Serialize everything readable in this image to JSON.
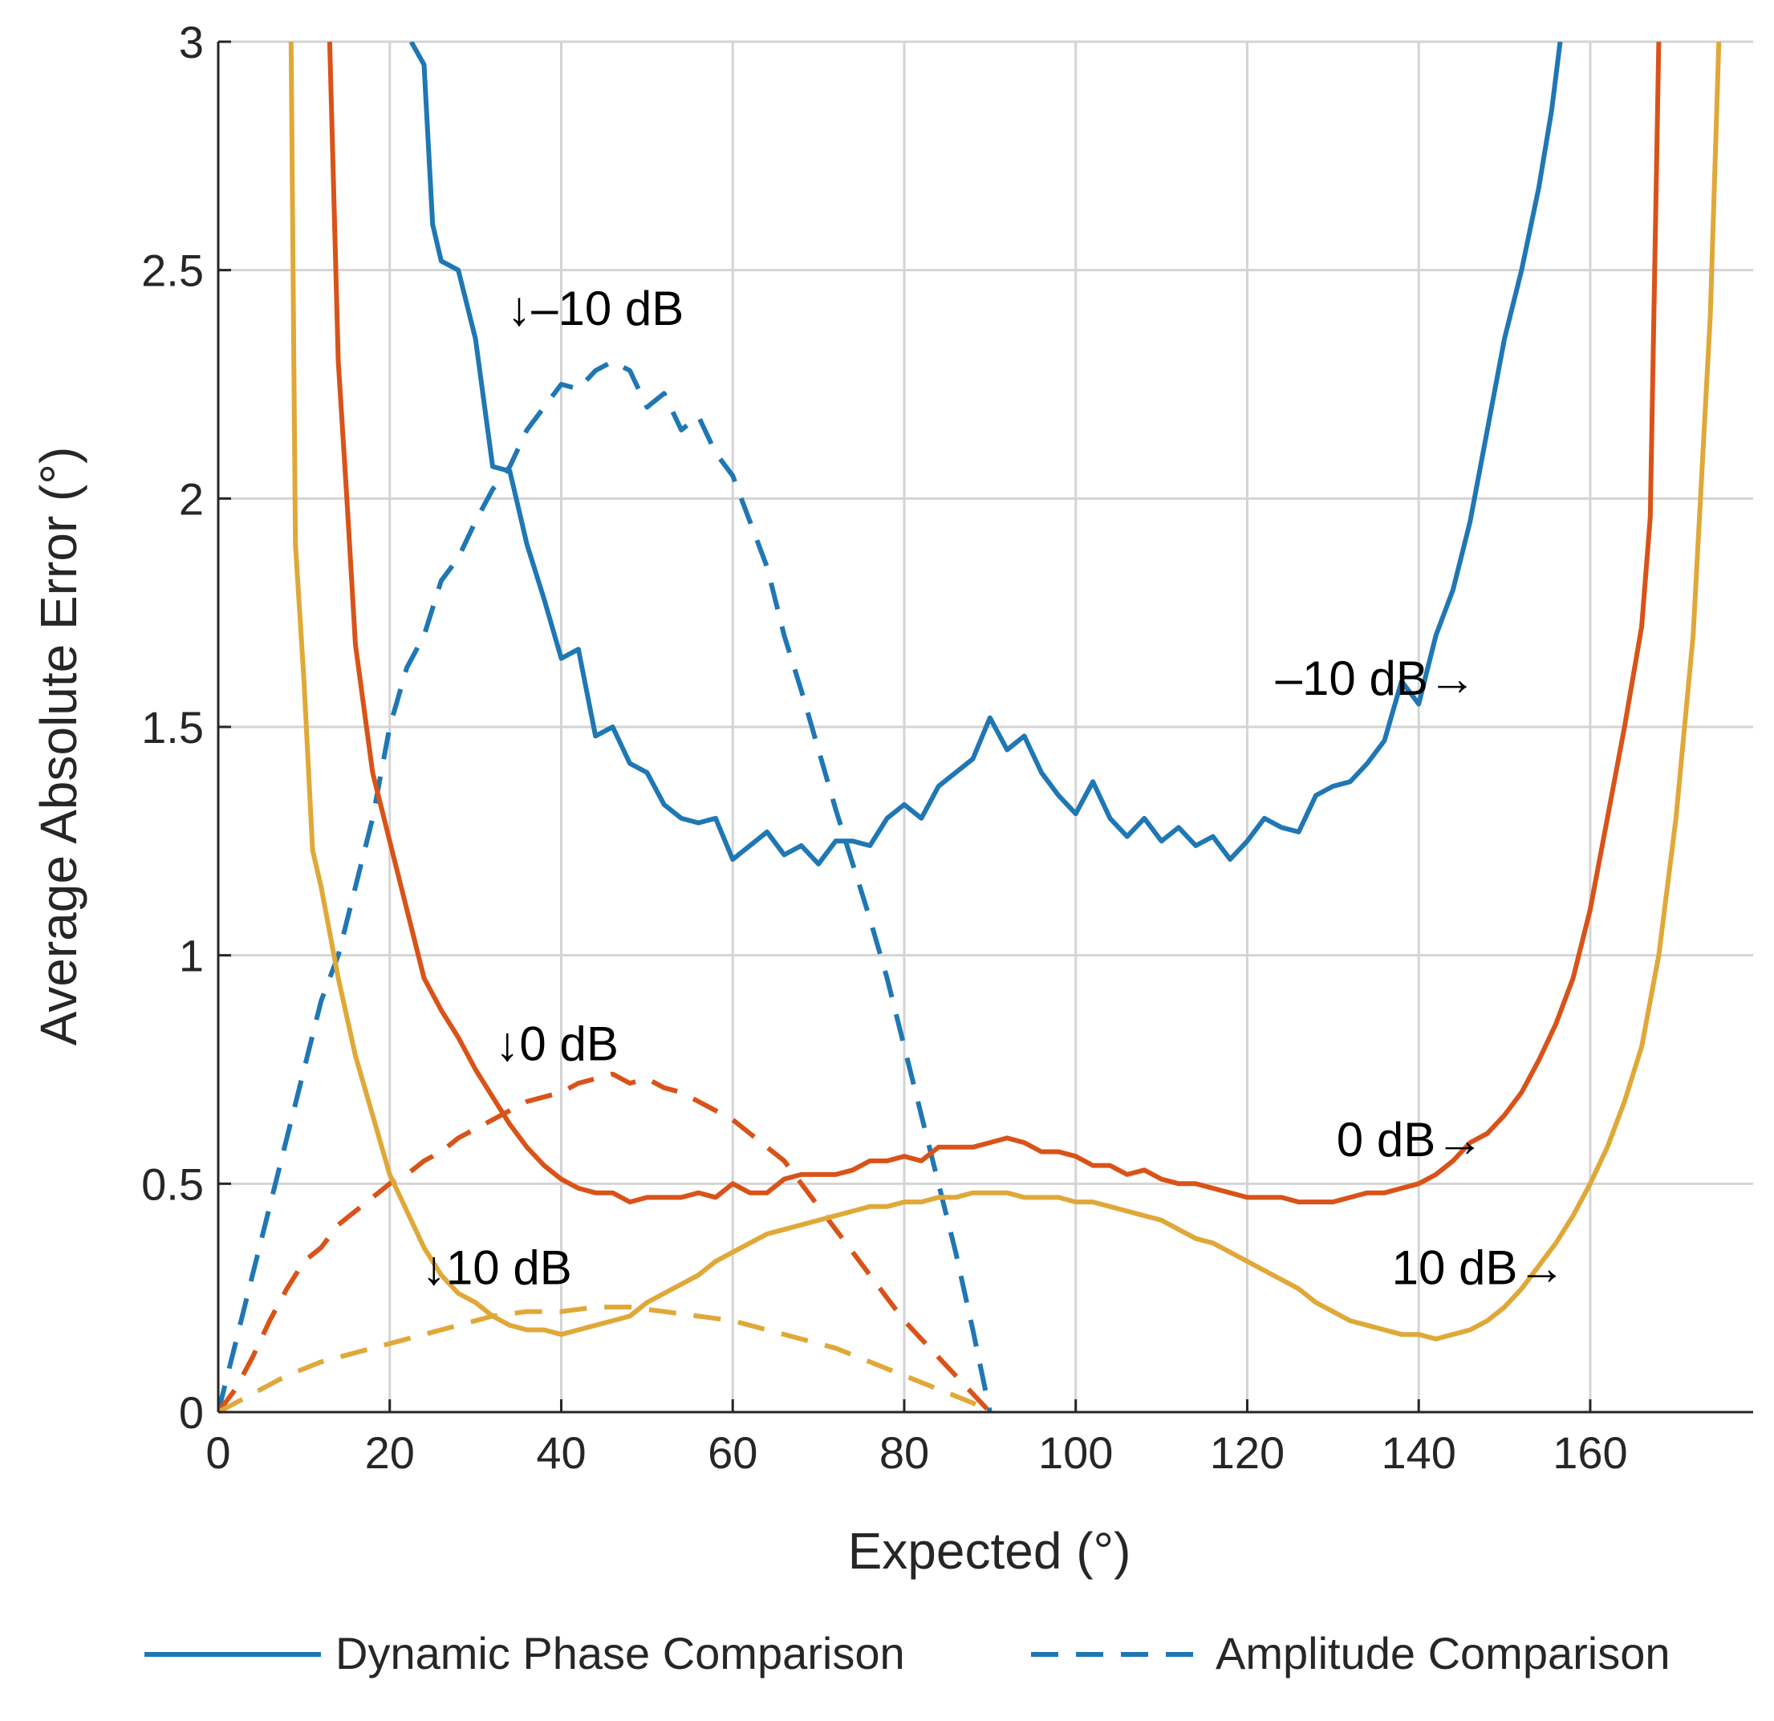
{
  "chart_data": {
    "type": "line",
    "title": "",
    "xlabel": "Expected (°)",
    "ylabel": "Average Absolute Error (°)",
    "xlim": [
      0,
      179
    ],
    "ylim": [
      0,
      3
    ],
    "x_ticks": [
      "0",
      "20",
      "40",
      "60",
      "80",
      "100",
      "120",
      "140",
      "160"
    ],
    "y_ticks": [
      "0",
      "0.5",
      "1",
      "1.5",
      "2",
      "2.5",
      "3"
    ],
    "grid": true,
    "legend": {
      "placement": "bottom",
      "entries": [
        {
          "label": "Dynamic Phase Comparison",
          "style": "solid"
        },
        {
          "label": "Amplitude Comparison",
          "style": "dashed"
        }
      ]
    },
    "colors": {
      "minus10": "#1f77b4",
      "zero": "#d95319",
      "plus10": "#e0a838"
    },
    "annotations": [
      {
        "text": "↓–10 dB",
        "x": 44,
        "y": 2.38
      },
      {
        "text": "–10 dB→",
        "x": 135,
        "y": 1.57
      },
      {
        "text": "↓0 dB",
        "x": 39.5,
        "y": 0.77
      },
      {
        "text": "0 dB→",
        "x": 139,
        "y": 0.56
      },
      {
        "text": "↓10 dB",
        "x": 32.5,
        "y": 0.28
      },
      {
        "text": "10 dB→",
        "x": 147,
        "y": 0.28
      }
    ],
    "series": [
      {
        "name": "-10 dB Dynamic Phase Comparison",
        "color": "#1f77b4",
        "dash": "solid",
        "x": [
          22.5,
          24,
          25,
          26,
          28,
          30,
          32,
          34,
          36,
          38,
          40,
          42,
          44,
          46,
          48,
          50,
          52,
          54,
          56,
          58,
          60,
          62,
          64,
          66,
          68,
          70,
          72,
          74,
          76,
          78,
          80,
          82,
          84,
          86,
          88,
          90,
          92,
          94,
          96,
          98,
          100,
          102,
          104,
          106,
          108,
          110,
          112,
          114,
          116,
          118,
          120,
          122,
          124,
          126,
          128,
          130,
          132,
          134,
          136,
          138,
          140,
          142,
          144,
          146,
          148,
          150,
          152,
          154,
          155.5,
          156.5
        ],
        "y": [
          3.0,
          2.95,
          2.6,
          2.52,
          2.5,
          2.35,
          2.07,
          2.06,
          1.9,
          1.78,
          1.65,
          1.67,
          1.48,
          1.5,
          1.42,
          1.4,
          1.33,
          1.3,
          1.29,
          1.3,
          1.21,
          1.24,
          1.27,
          1.22,
          1.24,
          1.2,
          1.25,
          1.25,
          1.24,
          1.3,
          1.33,
          1.3,
          1.37,
          1.4,
          1.43,
          1.52,
          1.45,
          1.48,
          1.4,
          1.35,
          1.31,
          1.38,
          1.3,
          1.26,
          1.3,
          1.25,
          1.28,
          1.24,
          1.26,
          1.21,
          1.25,
          1.3,
          1.28,
          1.27,
          1.35,
          1.37,
          1.38,
          1.42,
          1.47,
          1.6,
          1.55,
          1.7,
          1.8,
          1.95,
          2.15,
          2.35,
          2.5,
          2.68,
          2.85,
          3.0
        ]
      },
      {
        "name": "-10 dB Amplitude Comparison",
        "color": "#1f77b4",
        "dash": "dashed",
        "x": [
          0,
          2,
          4,
          6,
          8,
          10,
          12,
          14,
          16,
          18,
          20,
          22,
          24,
          26,
          28,
          30,
          32,
          34,
          36,
          38,
          40,
          42,
          44,
          46,
          48,
          50,
          52,
          54,
          56,
          58,
          60,
          62,
          64,
          66,
          68,
          70,
          72,
          74,
          76,
          78,
          80,
          82,
          84,
          86,
          88,
          90
        ],
        "y": [
          0,
          0.15,
          0.3,
          0.45,
          0.6,
          0.75,
          0.9,
          1.0,
          1.15,
          1.3,
          1.5,
          1.63,
          1.7,
          1.82,
          1.87,
          1.95,
          2.02,
          2.07,
          2.15,
          2.2,
          2.25,
          2.24,
          2.28,
          2.3,
          2.28,
          2.2,
          2.23,
          2.15,
          2.18,
          2.1,
          2.05,
          1.95,
          1.85,
          1.7,
          1.58,
          1.45,
          1.32,
          1.2,
          1.08,
          0.95,
          0.8,
          0.65,
          0.5,
          0.35,
          0.18,
          0.0
        ]
      },
      {
        "name": "0 dB Dynamic Phase Comparison",
        "color": "#d95319",
        "dash": "solid",
        "x": [
          13,
          14,
          15,
          16,
          18,
          20,
          22,
          24,
          26,
          28,
          30,
          32,
          34,
          36,
          38,
          40,
          42,
          44,
          46,
          48,
          50,
          52,
          54,
          56,
          58,
          60,
          62,
          64,
          66,
          68,
          70,
          72,
          74,
          76,
          78,
          80,
          82,
          84,
          86,
          88,
          90,
          92,
          94,
          96,
          98,
          100,
          102,
          104,
          106,
          108,
          110,
          112,
          114,
          116,
          118,
          120,
          122,
          124,
          126,
          128,
          130,
          132,
          134,
          136,
          138,
          140,
          142,
          144,
          146,
          148,
          150,
          152,
          154,
          156,
          158,
          160,
          162,
          164,
          166,
          167,
          168
        ],
        "y": [
          3.0,
          2.3,
          2.0,
          1.68,
          1.4,
          1.25,
          1.1,
          0.95,
          0.88,
          0.82,
          0.75,
          0.69,
          0.63,
          0.58,
          0.54,
          0.51,
          0.49,
          0.48,
          0.48,
          0.46,
          0.47,
          0.47,
          0.47,
          0.48,
          0.47,
          0.5,
          0.48,
          0.48,
          0.51,
          0.52,
          0.52,
          0.52,
          0.53,
          0.55,
          0.55,
          0.56,
          0.55,
          0.58,
          0.58,
          0.58,
          0.59,
          0.6,
          0.59,
          0.57,
          0.57,
          0.56,
          0.54,
          0.54,
          0.52,
          0.53,
          0.51,
          0.5,
          0.5,
          0.49,
          0.48,
          0.47,
          0.47,
          0.47,
          0.46,
          0.46,
          0.46,
          0.47,
          0.48,
          0.48,
          0.49,
          0.5,
          0.52,
          0.55,
          0.59,
          0.61,
          0.65,
          0.7,
          0.77,
          0.85,
          0.95,
          1.1,
          1.3,
          1.5,
          1.72,
          1.96,
          3.0
        ]
      },
      {
        "name": "0 dB Amplitude Comparison",
        "color": "#d95319",
        "dash": "dashed",
        "x": [
          0,
          2,
          4,
          6,
          8,
          10,
          12,
          14,
          16,
          18,
          20,
          22,
          24,
          26,
          28,
          30,
          32,
          34,
          36,
          38,
          40,
          42,
          44,
          46,
          48,
          50,
          52,
          54,
          56,
          58,
          60,
          62,
          64,
          66,
          68,
          70,
          72,
          74,
          76,
          78,
          80,
          82,
          84,
          86,
          88,
          90
        ],
        "y": [
          0,
          0.05,
          0.12,
          0.2,
          0.27,
          0.33,
          0.36,
          0.41,
          0.44,
          0.47,
          0.5,
          0.52,
          0.55,
          0.57,
          0.6,
          0.62,
          0.64,
          0.66,
          0.68,
          0.69,
          0.7,
          0.72,
          0.73,
          0.74,
          0.72,
          0.73,
          0.71,
          0.7,
          0.68,
          0.66,
          0.64,
          0.61,
          0.58,
          0.55,
          0.5,
          0.45,
          0.4,
          0.35,
          0.3,
          0.25,
          0.2,
          0.16,
          0.12,
          0.08,
          0.04,
          0.0
        ]
      },
      {
        "name": "10 dB Dynamic Phase Comparison",
        "color": "#e0a838",
        "dash": "solid",
        "x": [
          8.5,
          9,
          10,
          11,
          12,
          14,
          16,
          18,
          20,
          22,
          24,
          26,
          28,
          30,
          32,
          34,
          36,
          38,
          40,
          42,
          44,
          46,
          48,
          50,
          52,
          54,
          56,
          58,
          60,
          62,
          64,
          66,
          68,
          70,
          72,
          74,
          76,
          78,
          80,
          82,
          84,
          86,
          88,
          90,
          92,
          94,
          96,
          98,
          100,
          102,
          104,
          106,
          108,
          110,
          112,
          114,
          116,
          118,
          120,
          122,
          124,
          126,
          128,
          130,
          132,
          134,
          136,
          138,
          140,
          142,
          144,
          146,
          148,
          150,
          152,
          154,
          156,
          158,
          160,
          162,
          164,
          166,
          168,
          170,
          172,
          174,
          175
        ],
        "y": [
          3.0,
          1.9,
          1.6,
          1.23,
          1.15,
          0.95,
          0.78,
          0.65,
          0.52,
          0.44,
          0.36,
          0.3,
          0.26,
          0.24,
          0.21,
          0.19,
          0.18,
          0.18,
          0.17,
          0.18,
          0.19,
          0.2,
          0.21,
          0.24,
          0.26,
          0.28,
          0.3,
          0.33,
          0.35,
          0.37,
          0.39,
          0.4,
          0.41,
          0.42,
          0.43,
          0.44,
          0.45,
          0.45,
          0.46,
          0.46,
          0.47,
          0.47,
          0.48,
          0.48,
          0.48,
          0.47,
          0.47,
          0.47,
          0.46,
          0.46,
          0.45,
          0.44,
          0.43,
          0.42,
          0.4,
          0.38,
          0.37,
          0.35,
          0.33,
          0.31,
          0.29,
          0.27,
          0.24,
          0.22,
          0.2,
          0.19,
          0.18,
          0.17,
          0.17,
          0.16,
          0.17,
          0.18,
          0.2,
          0.23,
          0.27,
          0.32,
          0.37,
          0.43,
          0.5,
          0.58,
          0.68,
          0.8,
          1.0,
          1.3,
          1.7,
          2.4,
          3.0
        ]
      },
      {
        "name": "10 dB Amplitude Comparison",
        "color": "#e0a838",
        "dash": "dashed",
        "x": [
          0,
          4,
          8,
          12,
          16,
          20,
          24,
          28,
          32,
          36,
          40,
          44,
          48,
          52,
          56,
          60,
          64,
          68,
          72,
          76,
          80,
          84,
          88,
          90
        ],
        "y": [
          0,
          0.04,
          0.08,
          0.11,
          0.13,
          0.15,
          0.17,
          0.19,
          0.21,
          0.22,
          0.22,
          0.23,
          0.23,
          0.22,
          0.21,
          0.2,
          0.18,
          0.16,
          0.14,
          0.11,
          0.08,
          0.05,
          0.02,
          0.0
        ]
      }
    ]
  }
}
